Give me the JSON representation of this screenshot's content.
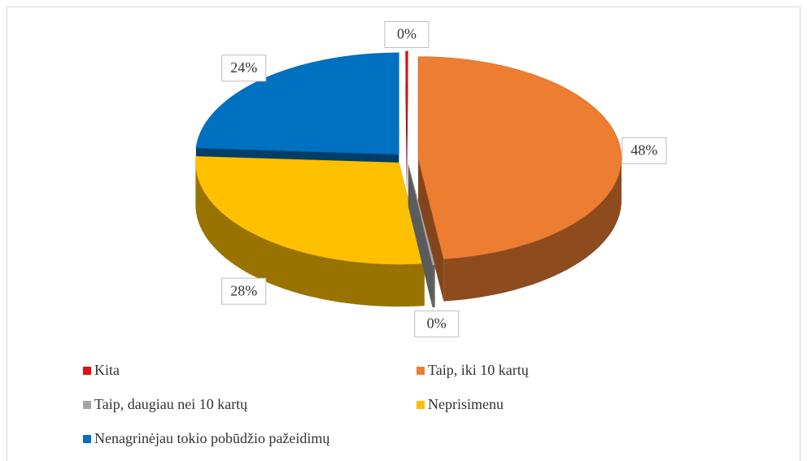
{
  "chart_data": {
    "type": "pie",
    "categories": [
      "Kita",
      "Taip, iki 10 kartų",
      "Taip, daugiau nei 10 kartų",
      "Neprisimenu",
      "Nenagrinėjau tokio pobūdžio pažeidimų"
    ],
    "values": [
      0,
      48,
      0,
      28,
      24
    ],
    "value_labels": [
      "0%",
      "48%",
      "0%",
      "28%",
      "24%"
    ],
    "colors": [
      "#e01010",
      "#ed7d31",
      "#a5a5a5",
      "#ffc000",
      "#0070c0"
    ],
    "legend": "bottom"
  }
}
